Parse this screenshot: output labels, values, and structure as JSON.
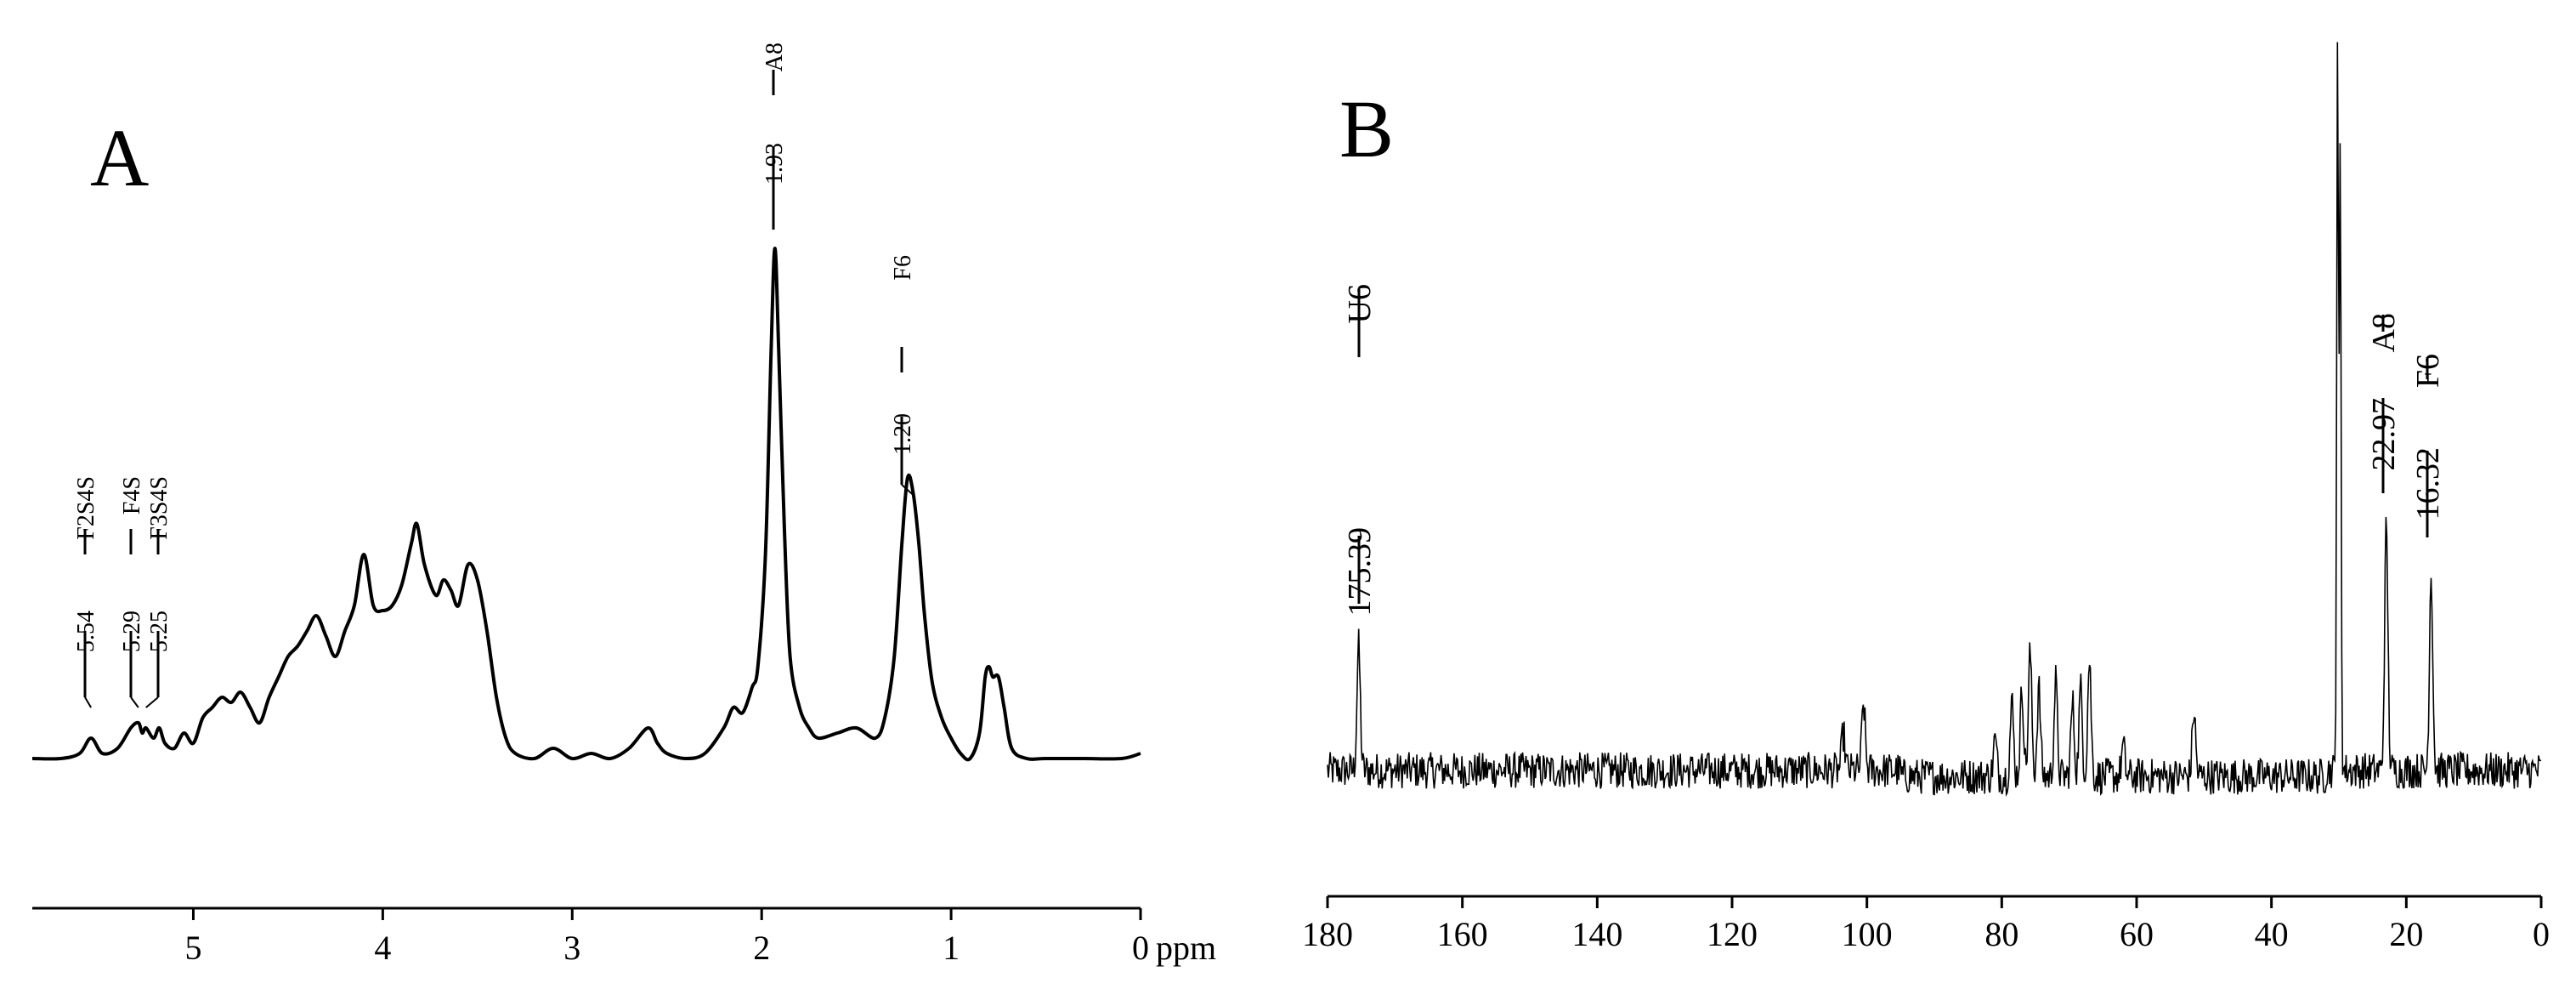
{
  "chart_data": [
    {
      "type": "line",
      "panel_label": "A",
      "xlabel": "ppm",
      "xlim": [
        5.85,
        0
      ],
      "x_reversed": true,
      "ticks": [
        {
          "value": 5,
          "label": "5"
        },
        {
          "value": 4,
          "label": "4"
        },
        {
          "value": 3,
          "label": "3"
        },
        {
          "value": 2,
          "label": "2"
        },
        {
          "value": 1,
          "label": "1"
        },
        {
          "value": 0,
          "label": "0"
        }
      ],
      "unit_label": "ppm",
      "grid": false,
      "series": [
        {
          "x": [
            5.85,
            5.7,
            5.6,
            5.54,
            5.48,
            5.4,
            5.33,
            5.29,
            5.27,
            5.25,
            5.21,
            5.18,
            5.15,
            5.1,
            5.05,
            5.0,
            4.95,
            4.9,
            4.85,
            4.8,
            4.75,
            4.7,
            4.65,
            4.6,
            4.55,
            4.5,
            4.45,
            4.4,
            4.35,
            4.3,
            4.25,
            4.2,
            4.15,
            4.1,
            4.05,
            4.0,
            3.95,
            3.9,
            3.85,
            3.82,
            3.78,
            3.72,
            3.68,
            3.64,
            3.6,
            3.55,
            3.5,
            3.45,
            3.4,
            3.35,
            3.3,
            3.2,
            3.1,
            3.0,
            2.9,
            2.8,
            2.7,
            2.6,
            2.55,
            2.5,
            2.4,
            2.3,
            2.2,
            2.15,
            2.1,
            2.05,
            2.02,
            1.98,
            1.95,
            1.93,
            1.91,
            1.88,
            1.85,
            1.8,
            1.75,
            1.7,
            1.6,
            1.5,
            1.4,
            1.35,
            1.3,
            1.26,
            1.23,
            1.2,
            1.17,
            1.14,
            1.1,
            1.05,
            1.0,
            0.95,
            0.9,
            0.85,
            0.82,
            0.8,
            0.78,
            0.75,
            0.72,
            0.68,
            0.6,
            0.5,
            0.3,
            0.1,
            0.0
          ],
          "y": [
            0.0,
            0.0,
            0.01,
            0.04,
            0.01,
            0.02,
            0.06,
            0.07,
            0.05,
            0.06,
            0.04,
            0.06,
            0.03,
            0.02,
            0.05,
            0.03,
            0.08,
            0.1,
            0.12,
            0.11,
            0.13,
            0.1,
            0.07,
            0.12,
            0.16,
            0.2,
            0.22,
            0.25,
            0.28,
            0.24,
            0.2,
            0.25,
            0.3,
            0.4,
            0.3,
            0.29,
            0.3,
            0.34,
            0.42,
            0.46,
            0.38,
            0.32,
            0.35,
            0.33,
            0.3,
            0.38,
            0.35,
            0.25,
            0.12,
            0.04,
            0.01,
            0.0,
            0.02,
            0.0,
            0.01,
            0.0,
            0.02,
            0.06,
            0.03,
            0.01,
            0.0,
            0.01,
            0.06,
            0.1,
            0.09,
            0.14,
            0.18,
            0.4,
            0.8,
            1.0,
            0.8,
            0.45,
            0.2,
            0.1,
            0.06,
            0.04,
            0.05,
            0.06,
            0.04,
            0.08,
            0.2,
            0.42,
            0.55,
            0.52,
            0.42,
            0.28,
            0.15,
            0.08,
            0.04,
            0.01,
            0.0,
            0.05,
            0.16,
            0.18,
            0.16,
            0.16,
            0.1,
            0.02,
            0.0,
            0.0,
            0.0,
            0.0,
            0.01
          ]
        }
      ],
      "annotations": [
        {
          "x": 5.54,
          "value": "5.54",
          "name": "F2S4S"
        },
        {
          "x": 5.29,
          "value": "5.29",
          "name": "F4S"
        },
        {
          "x": 5.25,
          "value": "5.25",
          "name": "F3S4S"
        },
        {
          "x": 1.93,
          "value": "1.93",
          "name": "A8"
        },
        {
          "x": 1.2,
          "value": "1.20",
          "name": "F6"
        }
      ]
    },
    {
      "type": "line",
      "panel_label": "B",
      "xlabel": "",
      "xlim": [
        180,
        0
      ],
      "x_reversed": true,
      "ticks": [
        {
          "value": 180,
          "label": "180"
        },
        {
          "value": 160,
          "label": "160"
        },
        {
          "value": 140,
          "label": "140"
        },
        {
          "value": 120,
          "label": "120"
        },
        {
          "value": 100,
          "label": "100"
        },
        {
          "value": 80,
          "label": "80"
        },
        {
          "value": 60,
          "label": "60"
        },
        {
          "value": 40,
          "label": "40"
        },
        {
          "value": 20,
          "label": "20"
        },
        {
          "value": 0,
          "label": "0"
        }
      ],
      "grid": false,
      "series": [
        {
          "peaks": [
            {
              "x": 175.39,
              "y": 0.17
            },
            {
              "x": 103.5,
              "y": 0.05
            },
            {
              "x": 100.5,
              "y": 0.09
            },
            {
              "x": 81.0,
              "y": 0.05
            },
            {
              "x": 78.5,
              "y": 0.1
            },
            {
              "x": 77.0,
              "y": 0.12
            },
            {
              "x": 75.8,
              "y": 0.17
            },
            {
              "x": 74.5,
              "y": 0.12
            },
            {
              "x": 72.0,
              "y": 0.13
            },
            {
              "x": 69.5,
              "y": 0.1
            },
            {
              "x": 68.3,
              "y": 0.12
            },
            {
              "x": 67.0,
              "y": 0.16
            },
            {
              "x": 62.0,
              "y": 0.04
            },
            {
              "x": 51.5,
              "y": 0.09
            },
            {
              "x": 30.2,
              "y": 1.0
            },
            {
              "x": 29.8,
              "y": 0.85
            },
            {
              "x": 22.97,
              "y": 0.33
            },
            {
              "x": 16.32,
              "y": 0.27
            }
          ],
          "noise_level": 0.025
        }
      ],
      "annotations": [
        {
          "x": 175.39,
          "value": "175.39",
          "name": "U6"
        },
        {
          "x": 22.97,
          "value": "22.97",
          "name": "A8"
        },
        {
          "x": 16.32,
          "value": "16.32",
          "name": "F6"
        }
      ]
    }
  ]
}
